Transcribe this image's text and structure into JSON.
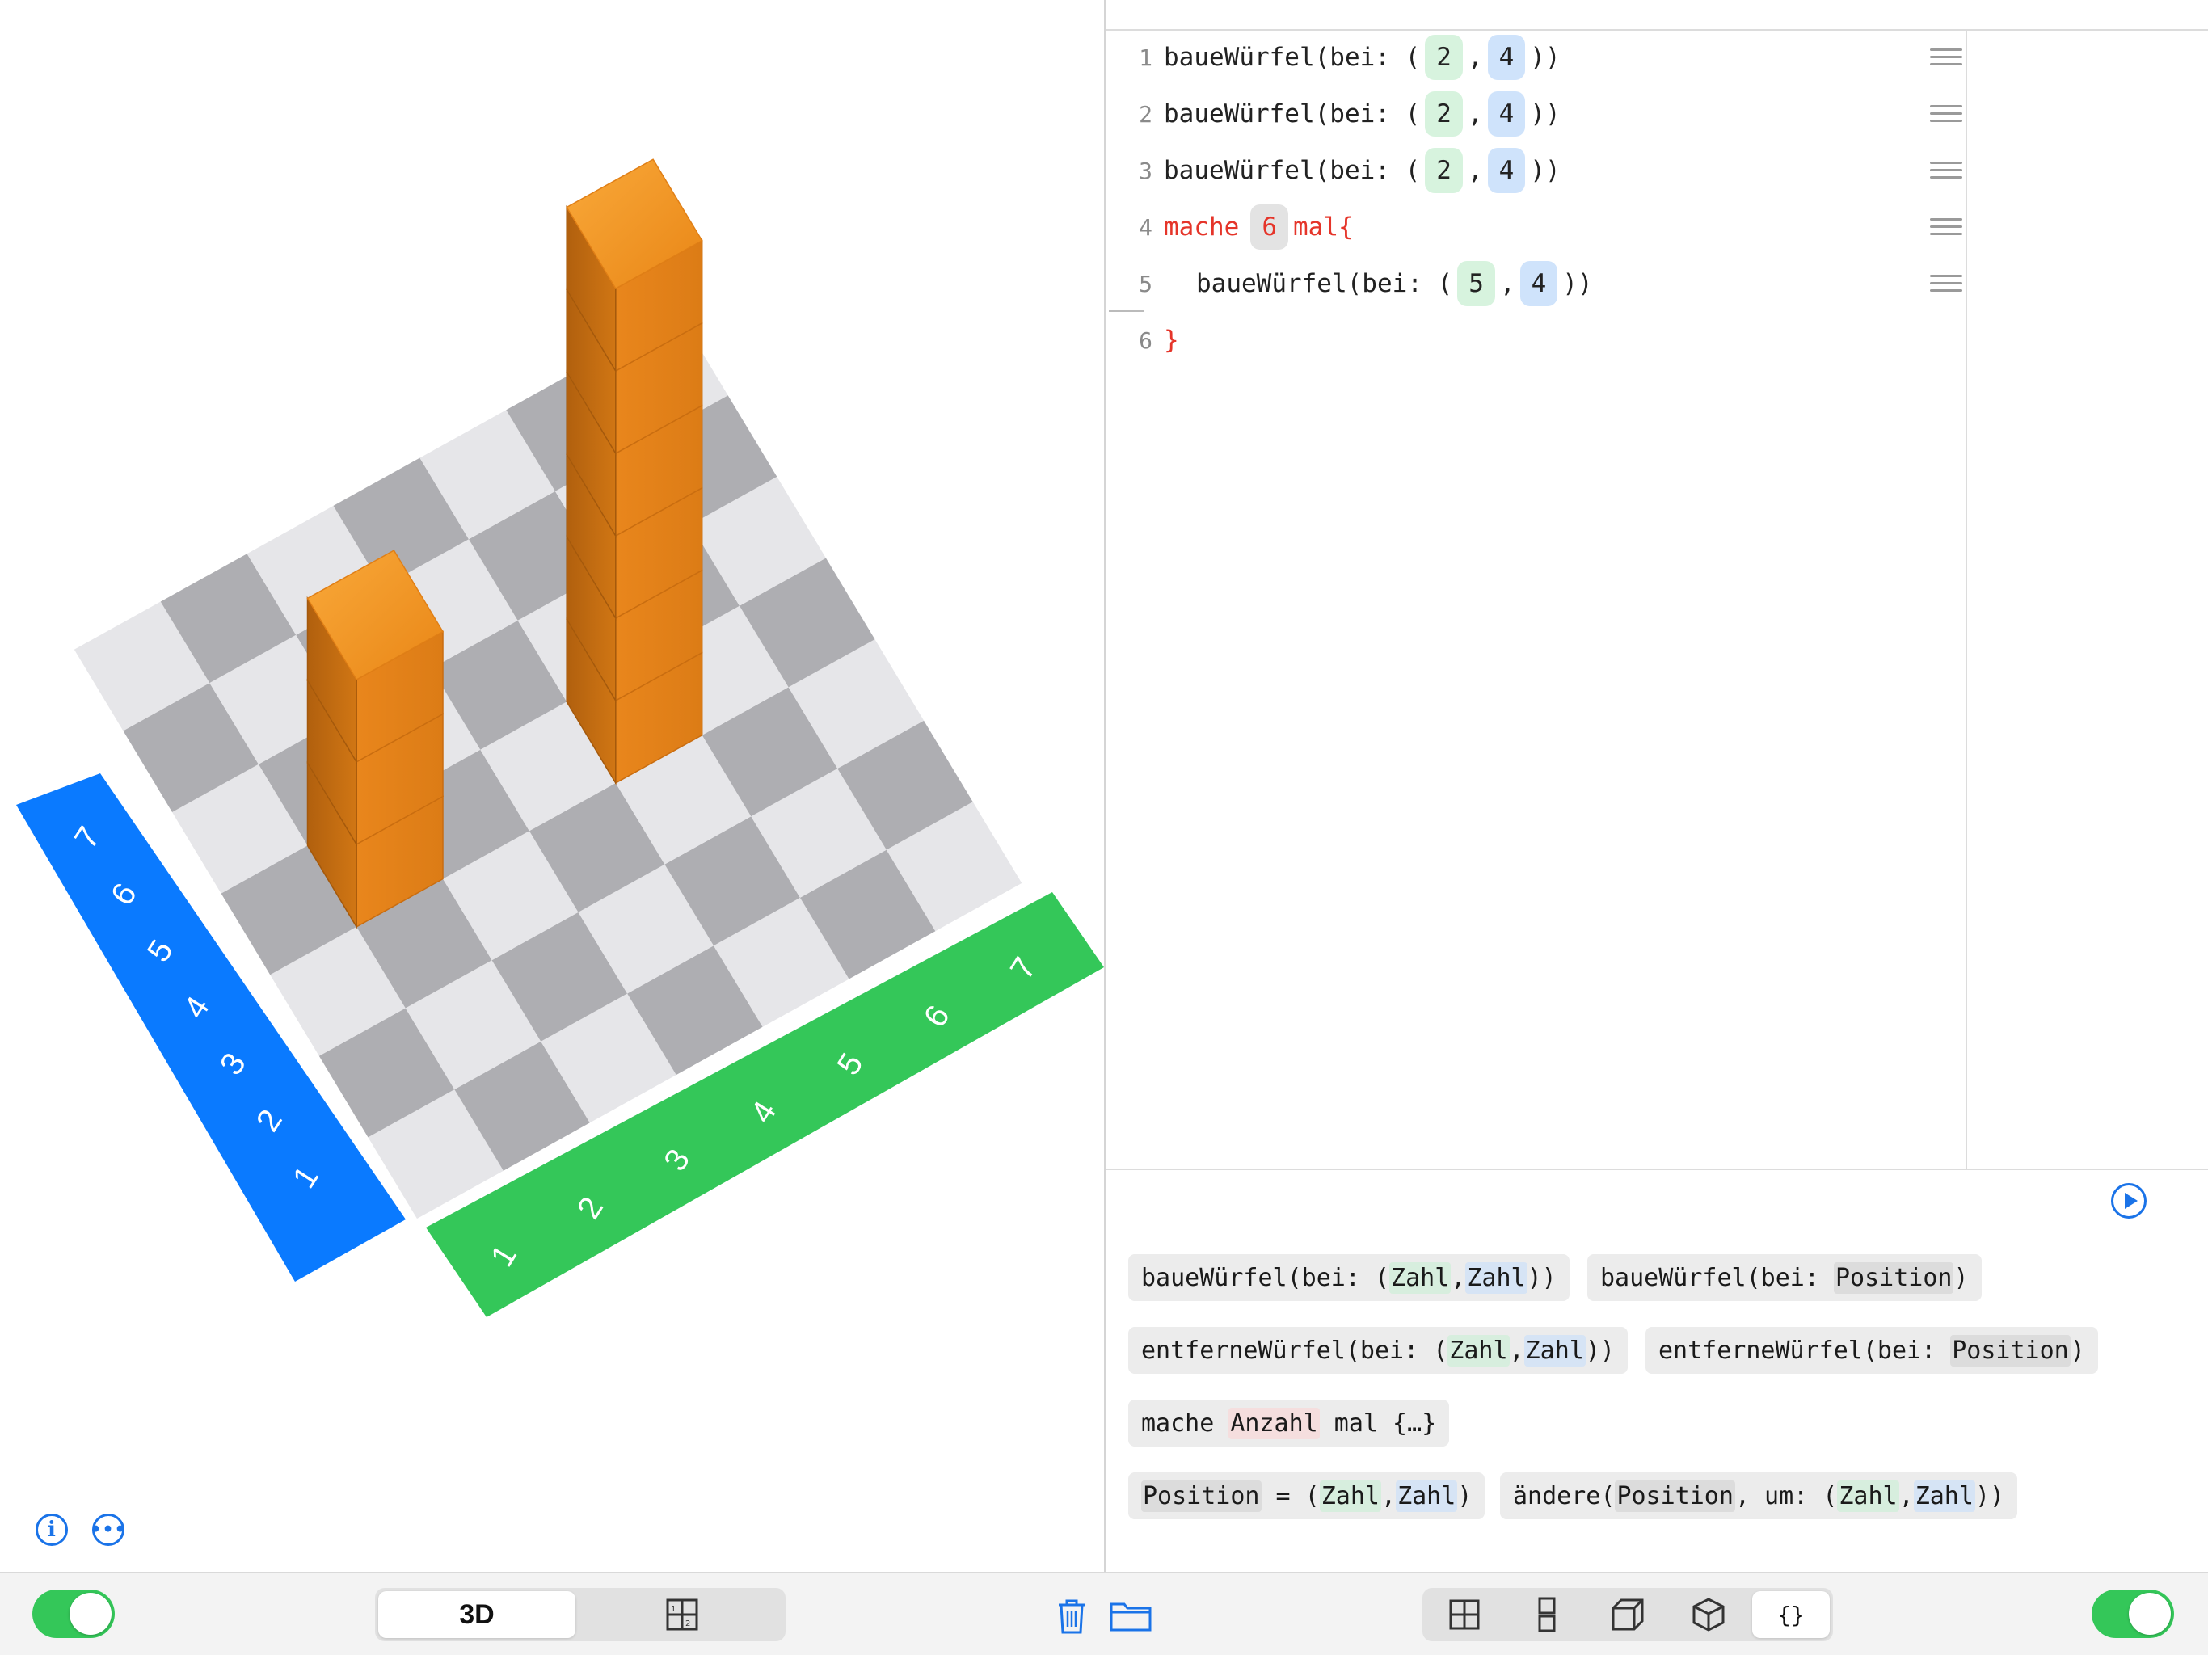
{
  "colors": {
    "x_axis": "#34c759",
    "y_axis": "#0a7aff",
    "cube": "#e9861c",
    "accent": "#1a73e8",
    "keyword": "#e5352a"
  },
  "scene": {
    "y_axis_labels": [
      "1",
      "2",
      "3",
      "4",
      "5",
      "6",
      "7"
    ],
    "x_axis_labels": [
      "1",
      "2",
      "3",
      "4",
      "5",
      "6",
      "7"
    ],
    "info_icon": "info-icon",
    "more_icon": "more-icon"
  },
  "editor": {
    "lines": [
      {
        "number": "1",
        "text": "baueWürfel(bei: (",
        "a": "2",
        "sep": ",",
        "b": "4",
        "end": "))"
      },
      {
        "number": "2",
        "text": "baueWürfel(bei: (",
        "a": "2",
        "sep": ",",
        "b": "4",
        "end": "))"
      },
      {
        "number": "3",
        "text": "baueWürfel(bei: (",
        "a": "2",
        "sep": ",",
        "b": "4",
        "end": "))"
      },
      {
        "number": "4",
        "kw1": "mache",
        "count": "6",
        "kw2": "mal{"
      },
      {
        "number": "5",
        "text": "baueWürfel(bei: (",
        "a": "5",
        "sep": ",",
        "b": "4",
        "end": "))"
      },
      {
        "number": "6",
        "close": "}"
      }
    ]
  },
  "palette": {
    "play_icon": "play-icon",
    "chips": {
      "c1": {
        "a": "baueWürfel(bei: (",
        "t1": "Zahl",
        "sep": ",",
        "t2": "Zahl",
        "end": "))"
      },
      "c2": {
        "a": "baueWürfel(bei: ",
        "t1": "Position",
        "end": ")"
      },
      "c3": {
        "a": "entferneWürfel(bei: (",
        "t1": "Zahl",
        "sep": ",",
        "t2": "Zahl",
        "end": "))"
      },
      "c4": {
        "a": "entferneWürfel(bei: ",
        "t1": "Position",
        "end": ")"
      },
      "c5": {
        "a": "mache ",
        "t1": "Anzahl",
        "end": " mal {…}"
      },
      "c6": {
        "t0": "Position",
        "a": " = (",
        "t1": "Zahl",
        "sep": ",",
        "t2": "Zahl",
        "end": ")"
      },
      "c7": {
        "a": "ändere(",
        "t0": "Position",
        "b": ", um: (",
        "t1": "Zahl",
        "sep": ",",
        "t2": "Zahl",
        "end": "))"
      }
    }
  },
  "toolbar": {
    "view_3d_label": "3D",
    "code_tool_label": "{}",
    "left_toggle_on": true,
    "right_toggle_on": true
  }
}
